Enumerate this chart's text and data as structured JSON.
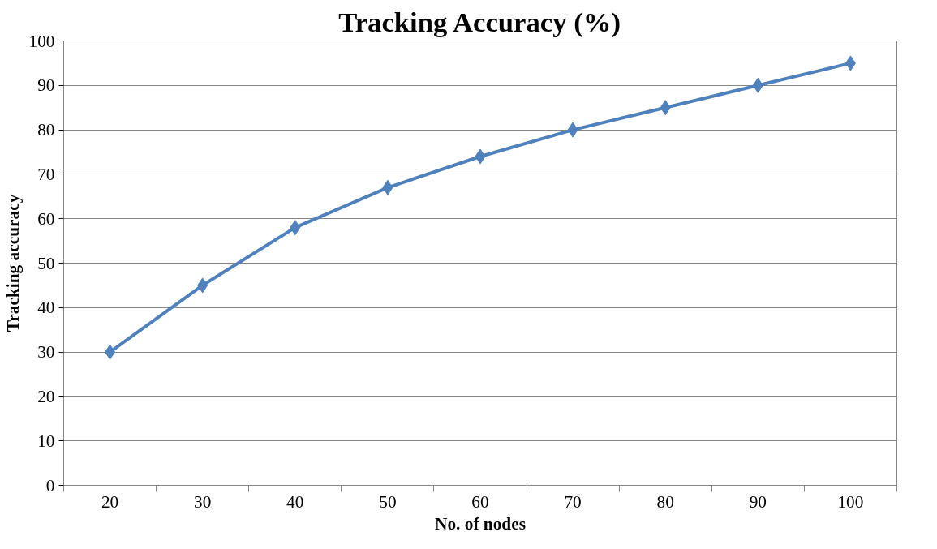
{
  "chart_data": {
    "type": "line",
    "title": "Tracking Accuracy (%)",
    "xlabel": "No. of nodes",
    "ylabel": "Tracking accuracy",
    "categories": [
      "20",
      "30",
      "40",
      "50",
      "60",
      "70",
      "80",
      "90",
      "100"
    ],
    "series": [
      {
        "color": "#4f81bd",
        "values": [
          30,
          45,
          58,
          67,
          74,
          80,
          85,
          90,
          95
        ]
      }
    ],
    "ylim": [
      0,
      100
    ],
    "yticks": [
      0,
      10,
      20,
      30,
      40,
      50,
      60,
      70,
      80,
      90,
      100
    ],
    "grid": "y",
    "marker": "diamond",
    "line_style": "solid"
  }
}
